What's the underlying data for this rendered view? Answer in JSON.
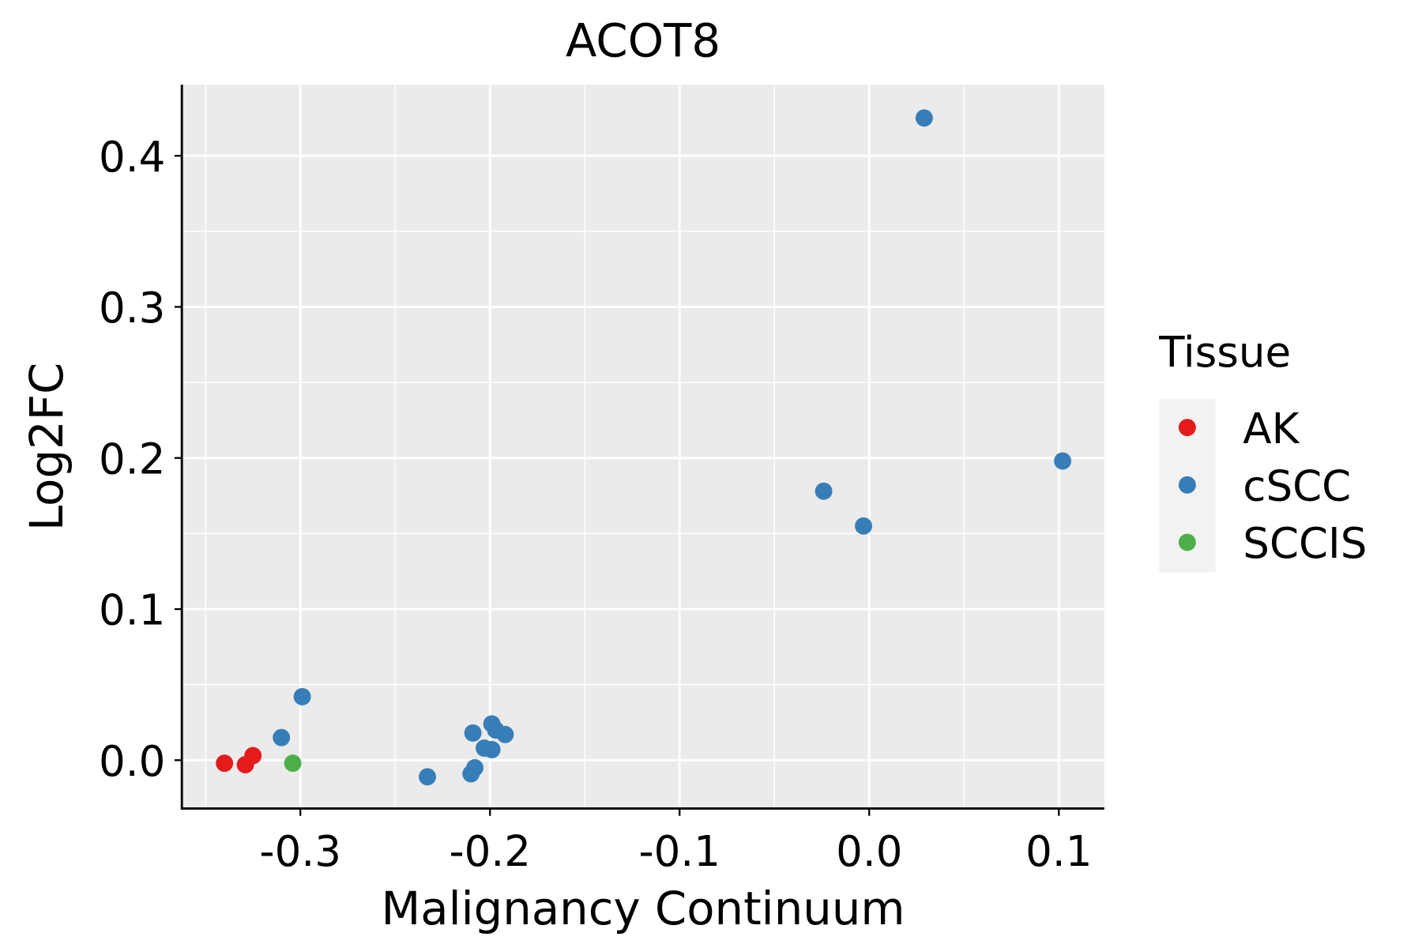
{
  "chart_data": {
    "type": "scatter",
    "title": "ACOT8",
    "xlabel": "Malignancy Continuum",
    "ylabel": "Log2FC",
    "xlim": [
      -0.3625,
      0.124
    ],
    "ylim": [
      -0.032,
      0.447
    ],
    "xticks": [
      -0.3,
      -0.2,
      -0.1,
      0.0,
      0.1
    ],
    "xtick_labels": [
      "-0.3",
      "-0.2",
      "-0.1",
      "0.0",
      "0.1"
    ],
    "yticks": [
      0.0,
      0.1,
      0.2,
      0.3,
      0.4
    ],
    "ytick_labels": [
      "0.0",
      "0.1",
      "0.2",
      "0.3",
      "0.4"
    ],
    "grid": true,
    "legend": {
      "title": "Tissue",
      "position": "right"
    },
    "series": [
      {
        "name": "AK",
        "color": "#E41A1C",
        "points": [
          [
            -0.34,
            -0.002
          ],
          [
            -0.329,
            -0.003
          ],
          [
            -0.325,
            0.003
          ]
        ]
      },
      {
        "name": "cSCC",
        "color": "#377EB8",
        "points": [
          [
            0.029,
            0.425
          ],
          [
            0.102,
            0.198
          ],
          [
            -0.024,
            0.178
          ],
          [
            -0.003,
            0.155
          ],
          [
            -0.299,
            0.042
          ],
          [
            -0.31,
            0.015
          ],
          [
            -0.233,
            -0.011
          ],
          [
            -0.21,
            -0.009
          ],
          [
            -0.208,
            -0.005
          ],
          [
            -0.209,
            0.018
          ],
          [
            -0.199,
            0.024
          ],
          [
            -0.192,
            0.017
          ],
          [
            -0.203,
            0.008
          ],
          [
            -0.199,
            0.007
          ],
          [
            -0.197,
            0.02
          ]
        ]
      },
      {
        "name": "SCCIS",
        "color": "#4DAF4A",
        "points": [
          [
            -0.304,
            -0.002
          ]
        ]
      }
    ]
  }
}
